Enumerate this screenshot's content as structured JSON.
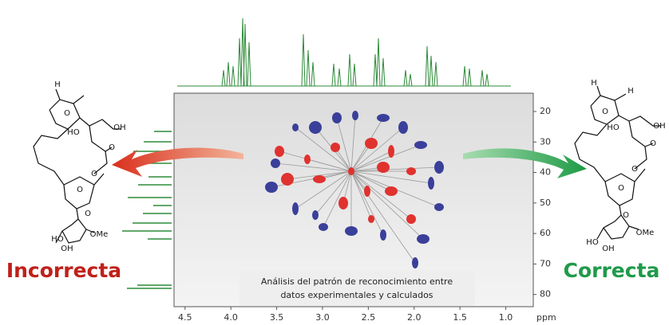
{
  "labels": {
    "left": "Incorrecta",
    "right": "Correcta"
  },
  "caption": {
    "line1": "Análisis del patrón de reconocimiento entre",
    "line2": "datos experimentales y calculados"
  },
  "spectrum": {
    "x_unit": "ppm",
    "xlim": [
      4.62,
      0.7
    ],
    "ylim": [
      14,
      84
    ],
    "xticks": [
      4.5,
      {
        "value": 4.0,
        "label": "4.0"
      },
      3.5,
      {
        "value": 3.0,
        "label": "3.0"
      },
      2.5,
      {
        "value": 2.0,
        "label": "2.0"
      },
      1.5,
      {
        "value": 1.0,
        "label": "1.0"
      }
    ],
    "yticks": [
      20,
      30,
      40,
      50,
      60,
      70,
      80
    ]
  },
  "left_molecule": {
    "atoms": [
      "H",
      "O",
      "HO",
      "OH",
      "O",
      "O",
      "O",
      "O",
      "HO",
      "OH",
      "OMe"
    ]
  },
  "right_molecule": {
    "atoms": [
      "H",
      "O",
      "H",
      "HO",
      "OH",
      "O",
      "O",
      "O",
      "O",
      "HO",
      "OH",
      "OMe"
    ]
  }
}
